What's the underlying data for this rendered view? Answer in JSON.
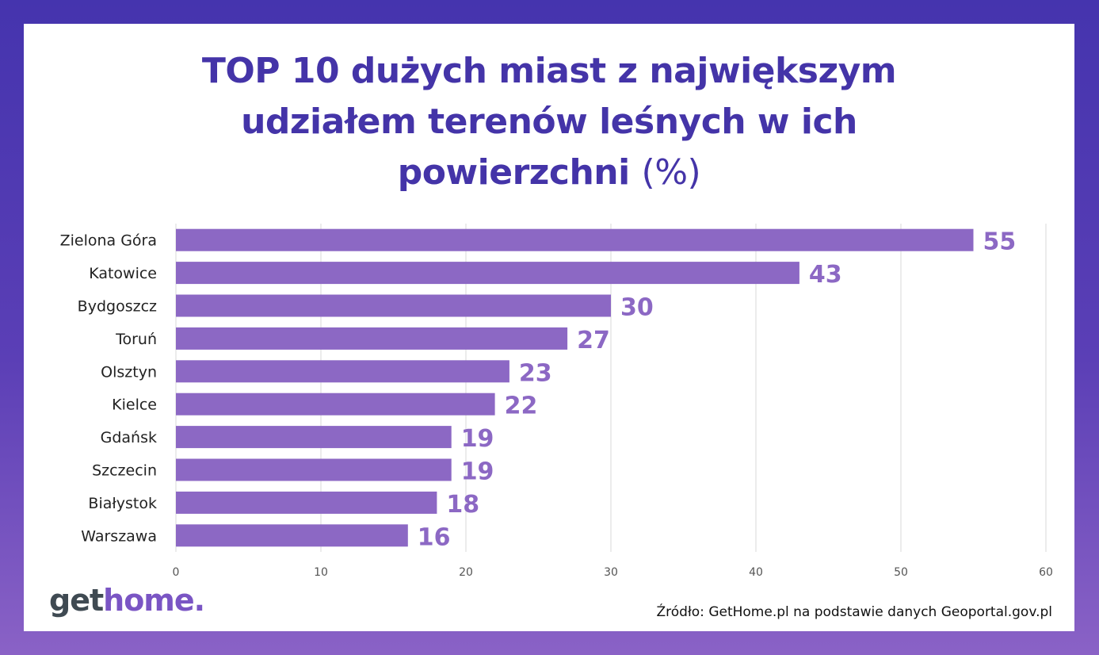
{
  "chart_data": {
    "type": "bar",
    "orientation": "horizontal",
    "title_line1": "TOP 10 dużych miast z największym",
    "title_line2": "udziałem terenów leśnych w ich",
    "title_line3": "powierzchni",
    "title_unit": "(%)",
    "categories": [
      "Zielona Góra",
      "Katowice",
      "Bydgoszcz",
      "Toruń",
      "Olsztyn",
      "Kielce",
      "Gdańsk",
      "Szczecin",
      "Białystok",
      "Warszawa"
    ],
    "values": [
      55,
      43,
      30,
      27,
      23,
      22,
      19,
      19,
      18,
      16
    ],
    "x_ticks": [
      0,
      10,
      20,
      30,
      40,
      50,
      60
    ],
    "xlim": [
      0,
      60
    ],
    "xlabel": "",
    "ylabel": "",
    "grid": true,
    "bar_color": "#8c68c4",
    "label_color": "#8c68c4",
    "source": "Źródło: GetHome.pl na podstawie danych Geoportal.gov.pl"
  },
  "brand": {
    "part1": "get",
    "part2": "home."
  }
}
